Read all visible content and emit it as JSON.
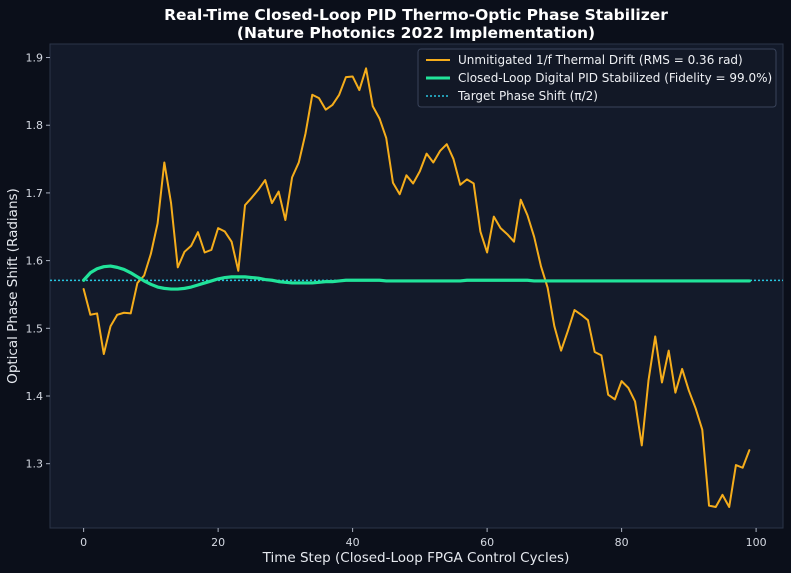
{
  "chart_data": {
    "type": "line",
    "title_lines": [
      "Real-Time Closed-Loop PID Thermo-Optic Phase Stabilizer",
      "(Nature Photonics 2022 Implementation)"
    ],
    "xlabel": "Time Step (Closed-Loop FPGA Control Cycles)",
    "ylabel": "Optical Phase Shift (Radians)",
    "xlim": [
      -5,
      104
    ],
    "ylim": [
      1.205,
      1.92
    ],
    "x_ticks": [
      0,
      20,
      40,
      60,
      80,
      100
    ],
    "x_tick_labels": [
      "0",
      "20",
      "40",
      "60",
      "80",
      "100"
    ],
    "y_ticks": [
      1.3,
      1.4,
      1.5,
      1.6,
      1.7,
      1.8,
      1.9
    ],
    "y_tick_labels": [
      "1.3",
      "1.4",
      "1.5",
      "1.6",
      "1.7",
      "1.8",
      "1.9"
    ],
    "grid": false,
    "legend_position": "top-right",
    "colors": {
      "background": "#0b0f1a",
      "plot_area": "#131a2a",
      "frame": "#2b3448",
      "drift": "#f5ad1b",
      "pid": "#21e39a",
      "target": "#29c6e0"
    },
    "series": [
      {
        "name": "Unmitigated 1/f Thermal Drift (RMS = 0.36 rad)",
        "style": "solid",
        "x": [
          0,
          1,
          2,
          3,
          4,
          5,
          6,
          7,
          8,
          9,
          10,
          11,
          12,
          13,
          14,
          15,
          16,
          17,
          18,
          19,
          20,
          21,
          22,
          23,
          24,
          25,
          26,
          27,
          28,
          29,
          30,
          31,
          32,
          33,
          34,
          35,
          36,
          37,
          38,
          39,
          40,
          41,
          42,
          43,
          44,
          45,
          46,
          47,
          48,
          49,
          50,
          51,
          52,
          53,
          54,
          55,
          56,
          57,
          58,
          59,
          60,
          61,
          62,
          63,
          64,
          65,
          66,
          67,
          68,
          69,
          70,
          71,
          72,
          73,
          74,
          75,
          76,
          77,
          78,
          79,
          80,
          81,
          82,
          83,
          84,
          85,
          86,
          87,
          88,
          89,
          90,
          91,
          92,
          93,
          94,
          95,
          96,
          97,
          98,
          99
        ],
        "y": [
          1.558,
          1.52,
          1.522,
          1.462,
          1.503,
          1.52,
          1.523,
          1.522,
          1.567,
          1.578,
          1.61,
          1.655,
          1.745,
          1.685,
          1.59,
          1.613,
          1.622,
          1.642,
          1.612,
          1.616,
          1.648,
          1.643,
          1.628,
          1.585,
          1.682,
          1.693,
          1.705,
          1.719,
          1.685,
          1.702,
          1.66,
          1.723,
          1.745,
          1.788,
          1.845,
          1.84,
          1.823,
          1.83,
          1.845,
          1.871,
          1.872,
          1.852,
          1.884,
          1.828,
          1.81,
          1.781,
          1.715,
          1.698,
          1.726,
          1.714,
          1.732,
          1.758,
          1.745,
          1.762,
          1.772,
          1.75,
          1.712,
          1.72,
          1.714,
          1.643,
          1.612,
          1.665,
          1.648,
          1.639,
          1.628,
          1.69,
          1.667,
          1.635,
          1.592,
          1.56,
          1.503,
          1.467,
          1.496,
          1.527,
          1.52,
          1.512,
          1.465,
          1.46,
          1.402,
          1.395,
          1.422,
          1.412,
          1.392,
          1.327,
          1.423,
          1.488,
          1.42,
          1.467,
          1.405,
          1.44,
          1.408,
          1.382,
          1.35,
          1.238,
          1.236,
          1.254,
          1.236,
          1.298,
          1.294,
          1.32
        ]
      },
      {
        "name": "Closed-Loop Digital PID Stabilized (Fidelity = 99.0%)",
        "style": "solid-thick",
        "x": [
          0,
          1,
          2,
          3,
          4,
          5,
          6,
          7,
          8,
          9,
          10,
          11,
          12,
          13,
          14,
          15,
          16,
          17,
          18,
          19,
          20,
          21,
          22,
          23,
          24,
          25,
          26,
          27,
          28,
          29,
          30,
          31,
          32,
          33,
          34,
          35,
          36,
          37,
          38,
          39,
          40,
          41,
          42,
          43,
          44,
          45,
          46,
          47,
          48,
          49,
          50,
          51,
          52,
          53,
          54,
          55,
          56,
          57,
          58,
          59,
          60,
          61,
          62,
          63,
          64,
          65,
          66,
          67,
          68,
          69,
          70,
          71,
          72,
          73,
          74,
          75,
          76,
          77,
          78,
          79,
          80,
          81,
          82,
          83,
          84,
          85,
          86,
          87,
          88,
          89,
          90,
          91,
          92,
          93,
          94,
          95,
          96,
          97,
          98,
          99
        ],
        "y": [
          1.571,
          1.582,
          1.588,
          1.591,
          1.592,
          1.59,
          1.587,
          1.582,
          1.576,
          1.57,
          1.565,
          1.561,
          1.559,
          1.558,
          1.558,
          1.559,
          1.561,
          1.564,
          1.567,
          1.57,
          1.573,
          1.575,
          1.576,
          1.576,
          1.576,
          1.575,
          1.574,
          1.572,
          1.571,
          1.569,
          1.568,
          1.567,
          1.567,
          1.567,
          1.567,
          1.568,
          1.569,
          1.569,
          1.57,
          1.571,
          1.571,
          1.571,
          1.571,
          1.571,
          1.571,
          1.57,
          1.57,
          1.57,
          1.57,
          1.57,
          1.57,
          1.57,
          1.57,
          1.57,
          1.57,
          1.57,
          1.57,
          1.571,
          1.571,
          1.571,
          1.571,
          1.571,
          1.571,
          1.571,
          1.571,
          1.571,
          1.571,
          1.57,
          1.57,
          1.57,
          1.57,
          1.57,
          1.57,
          1.57,
          1.57,
          1.57,
          1.57,
          1.57,
          1.57,
          1.57,
          1.57,
          1.57,
          1.57,
          1.57,
          1.57,
          1.57,
          1.57,
          1.57,
          1.57,
          1.57,
          1.57,
          1.57,
          1.57,
          1.57,
          1.57,
          1.57,
          1.57,
          1.57,
          1.57,
          1.57
        ]
      },
      {
        "name": "Target Phase Shift (π/2)",
        "style": "dotted",
        "y_constant": 1.5708
      }
    ]
  }
}
